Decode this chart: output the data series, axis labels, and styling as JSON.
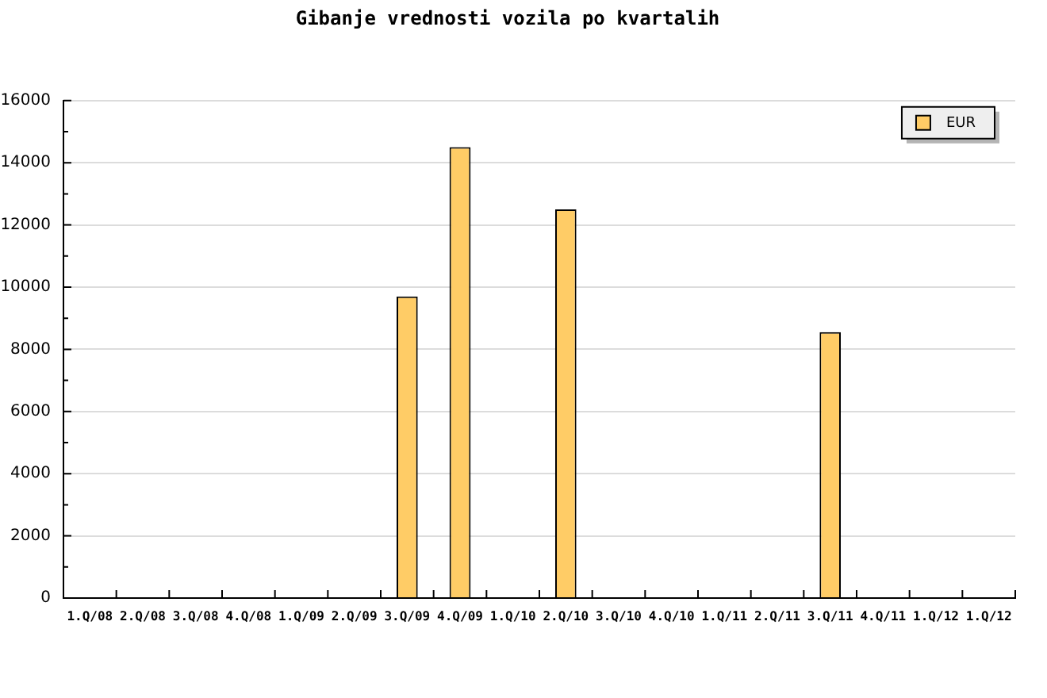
{
  "chart_data": {
    "type": "bar",
    "title": "Gibanje vrednosti vozila po kvartalih",
    "categories": [
      "1.Q/08",
      "2.Q/08",
      "3.Q/08",
      "4.Q/08",
      "1.Q/09",
      "2.Q/09",
      "3.Q/09",
      "4.Q/09",
      "1.Q/10",
      "2.Q/10",
      "3.Q/10",
      "4.Q/10",
      "1.Q/11",
      "2.Q/11",
      "3.Q/11",
      "4.Q/11",
      "1.Q/12",
      "1.Q/12"
    ],
    "series": [
      {
        "name": "EUR",
        "color": "#ffcc66",
        "values": [
          null,
          null,
          null,
          null,
          null,
          null,
          9700,
          14500,
          null,
          12500,
          null,
          null,
          null,
          null,
          8550,
          null,
          null,
          null
        ]
      }
    ],
    "ylim": [
      0,
      16000
    ],
    "yticks": [
      0,
      {
        "value": 1000,
        "label": null
      },
      2000,
      {
        "value": 3000,
        "label": null
      },
      4000,
      {
        "value": 5000,
        "label": null
      },
      6000,
      {
        "value": 7000,
        "label": null
      },
      8000,
      {
        "value": 9000,
        "label": null
      },
      10000,
      {
        "value": 11000,
        "label": null
      },
      12000,
      {
        "value": 13000,
        "label": null
      },
      14000,
      {
        "value": 15000,
        "label": null
      },
      16000
    ],
    "grid": "y",
    "legend": "top right"
  }
}
